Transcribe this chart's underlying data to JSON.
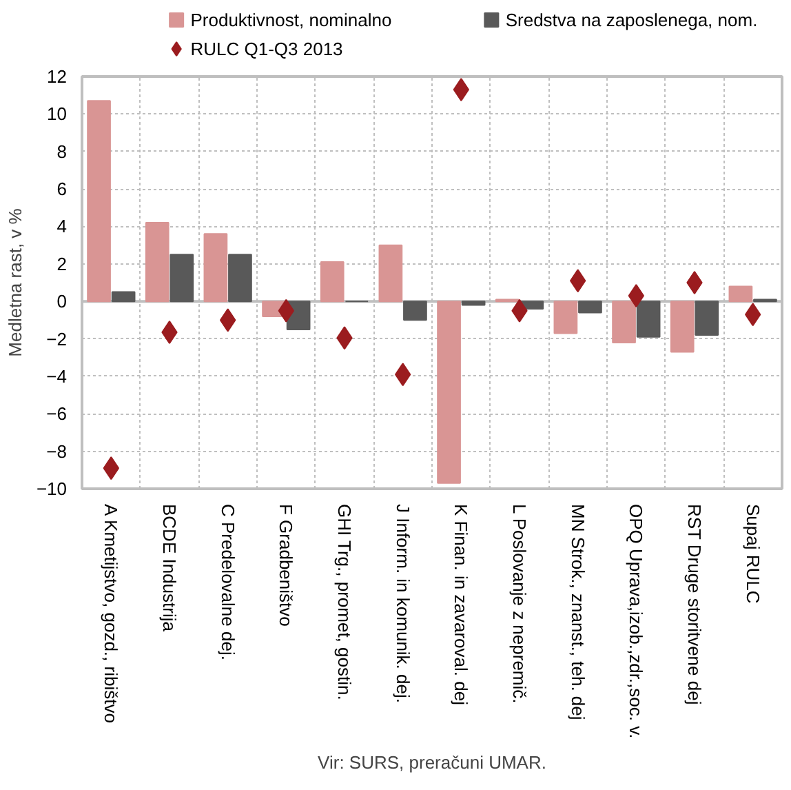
{
  "chart_data": {
    "type": "bar",
    "categories": [
      "A Kmetijstvo, gozd., ribištvo",
      "BCDE Industrija",
      "C Predelovalne dej.",
      "F Gradbeništvo",
      "GHI Trg., promet, gostin.",
      "J Inform. in komunik. dej.",
      "K Finan. in zavaroval. dej",
      "L Poslovanje z nepremič.",
      "MN Strok., znanst., teh. dej",
      "OPQ Uprava,izob.,zdr.,soc. v.",
      "RST Druge storitvene dej",
      "Supaj RULC"
    ],
    "series": [
      {
        "name": "Produktivnost, nominalno",
        "color": "#d99594",
        "values": [
          10.7,
          4.2,
          3.6,
          -0.8,
          2.1,
          3.0,
          -9.7,
          0.1,
          -1.7,
          -2.2,
          -2.7,
          0.8
        ]
      },
      {
        "name": "Sredstva na zaposlenega, nom.",
        "color": "#595959",
        "values": [
          0.5,
          2.5,
          2.5,
          -1.5,
          0.0,
          -1.0,
          -0.2,
          -0.4,
          -0.6,
          -1.9,
          -1.8,
          0.1
        ]
      },
      {
        "name": "RULC Q1-Q3 2013",
        "type": "scatter",
        "marker": "diamond",
        "color": "#9b1c1f",
        "values": [
          -8.9,
          -1.65,
          -1.0,
          -0.5,
          -1.95,
          -3.9,
          11.3,
          -0.5,
          1.1,
          0.3,
          1.0,
          -0.7
        ]
      }
    ],
    "ylabel": "Medletna rast, v %",
    "ylim": [
      -10,
      12
    ],
    "yticks": [
      -10,
      -8,
      -6,
      -4,
      -2,
      0,
      2,
      4,
      6,
      8,
      10,
      12
    ],
    "grid": true,
    "legend": "top",
    "annotations": [
      "Vir: SURS, preračuni UMAR."
    ]
  }
}
